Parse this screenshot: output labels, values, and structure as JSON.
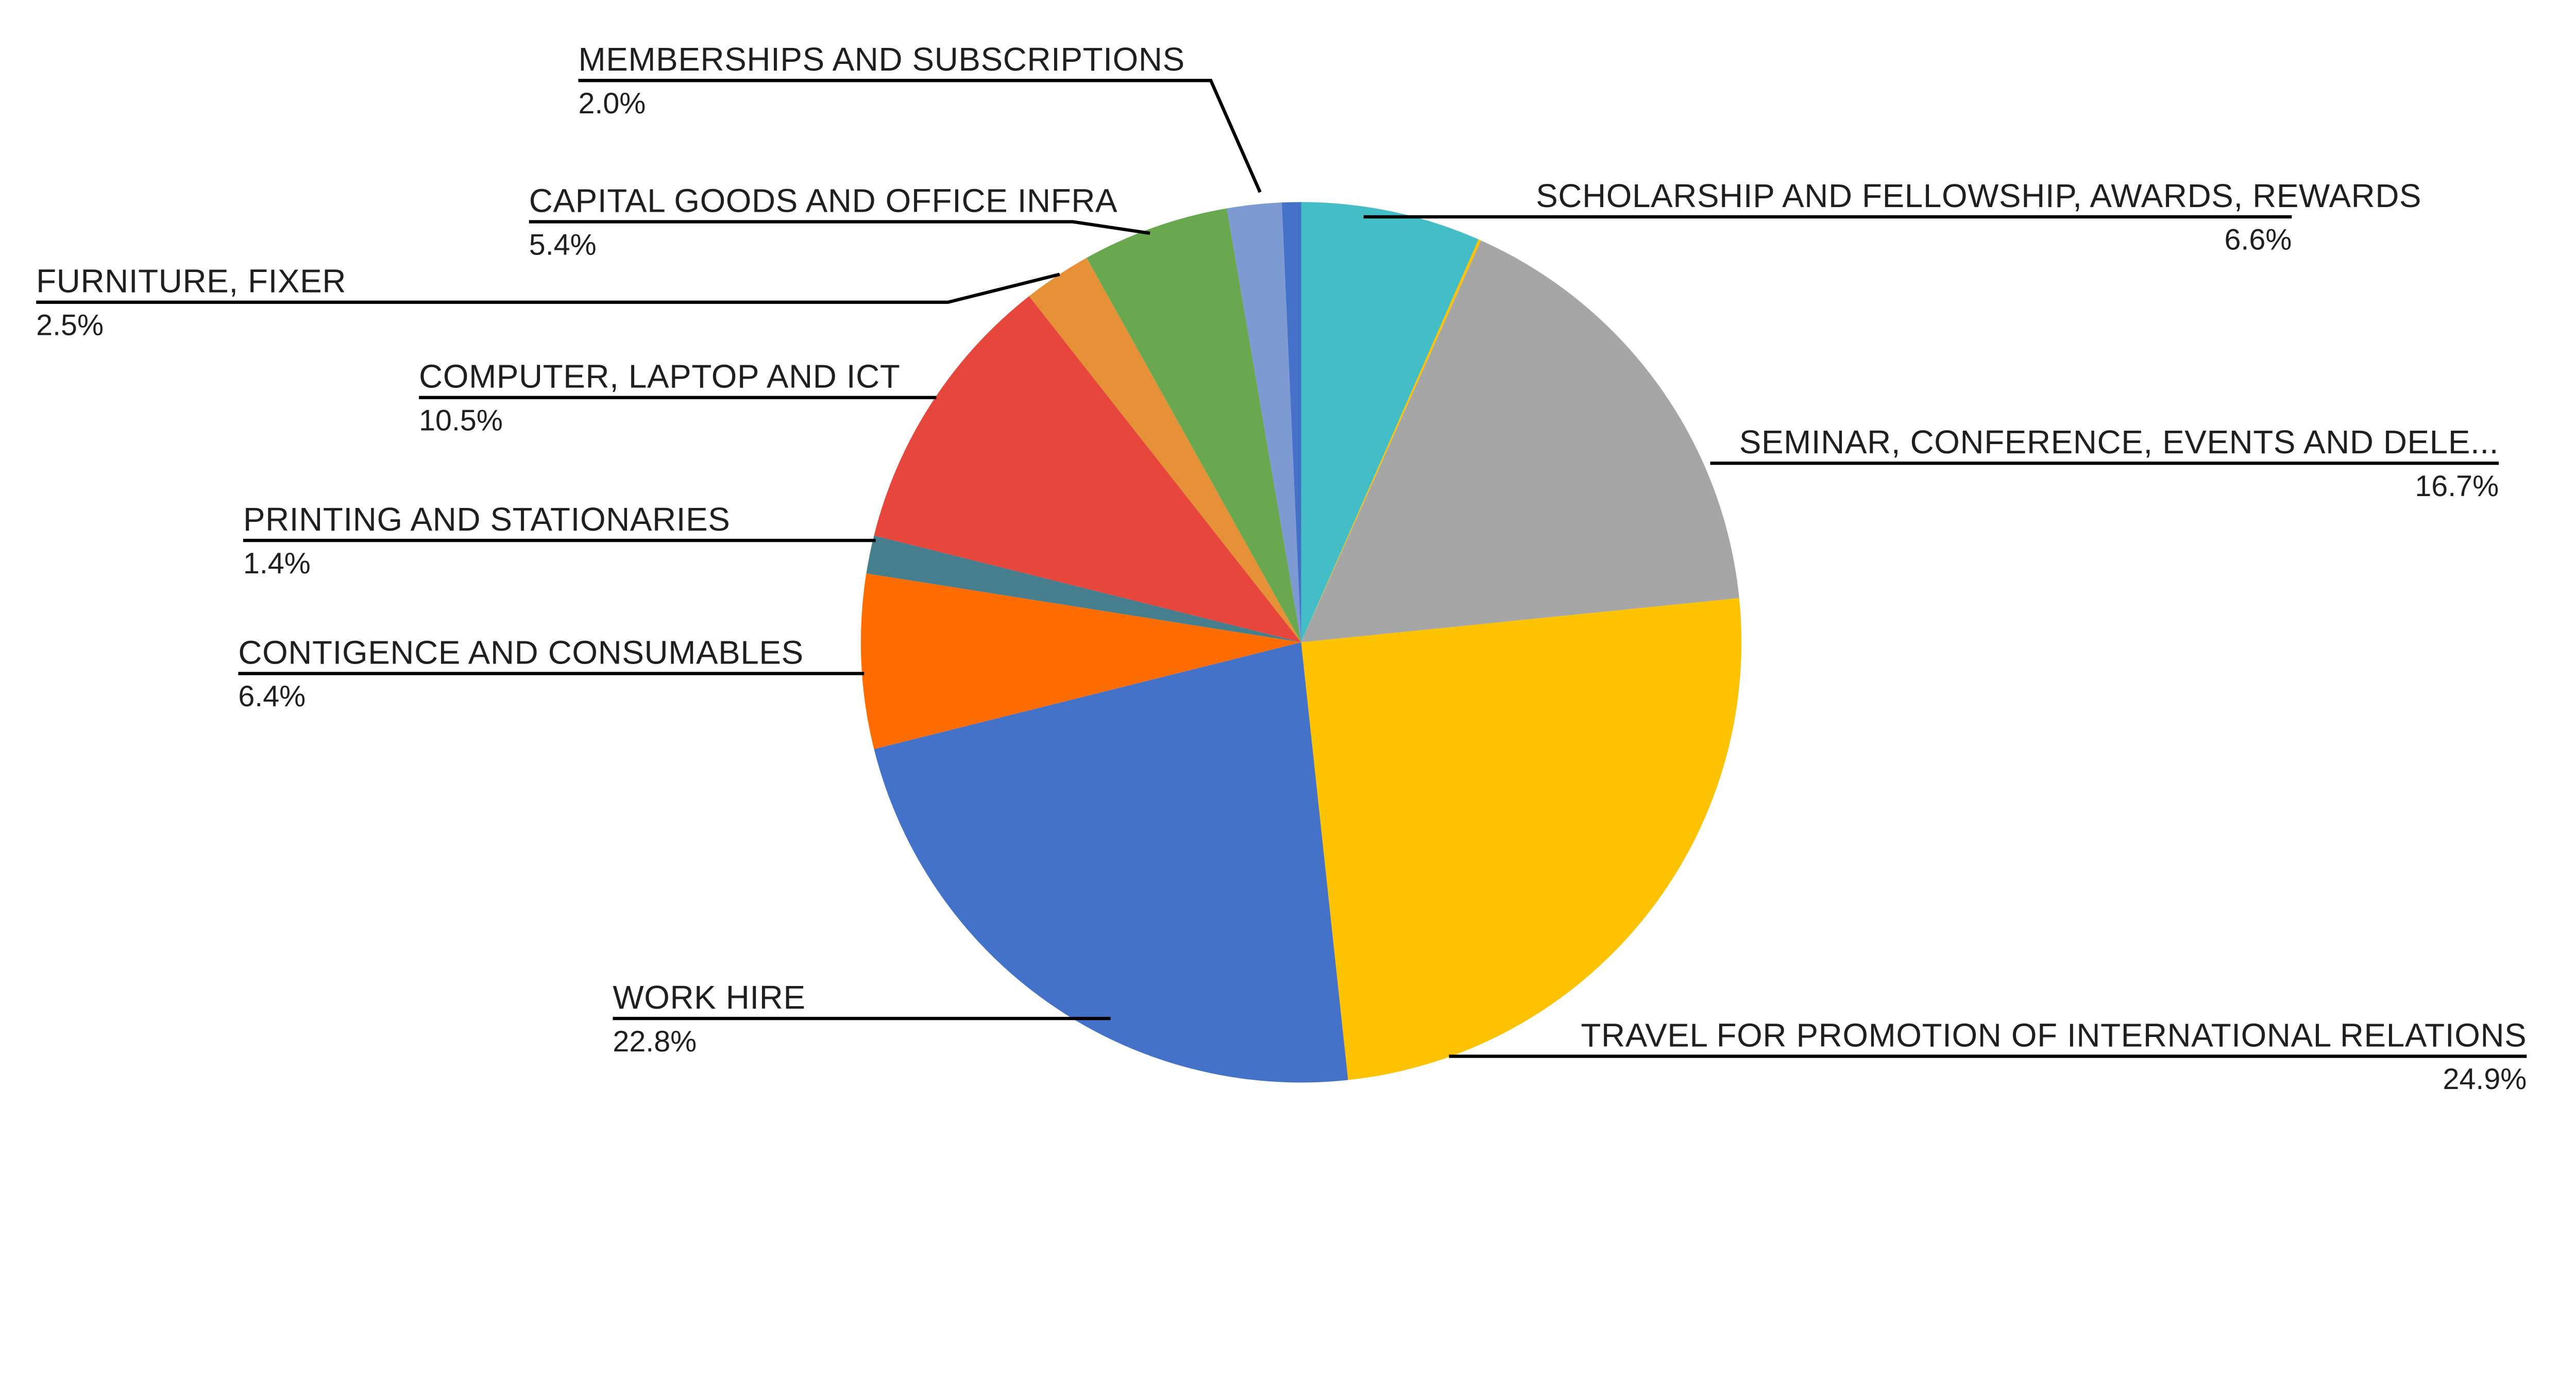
{
  "chart_data": {
    "type": "pie",
    "title": "",
    "direction": "clockwise",
    "start_angle_deg": 0,
    "background": "#FFFFFF",
    "text_color": "#1F1F1F",
    "leader_line_color": "#000000",
    "legend_position": "none",
    "slices": [
      {
        "label": "SCHOLARSHIP AND FELLOWSHIP, AWARDS, REWARDS",
        "pct_label": "6.6%",
        "value": 6.6,
        "color": "#43BEC6",
        "labeled": true
      },
      {
        "label": "",
        "pct_label": "",
        "value": 0.1,
        "color": "#FDC300",
        "labeled": false
      },
      {
        "label": "SEMINAR, CONFERENCE, EVENTS AND DELE...",
        "pct_label": "16.7%",
        "value": 16.7,
        "color": "#A6A6A6",
        "labeled": true
      },
      {
        "label": "TRAVEL FOR PROMOTION OF INTERNATIONAL RELATIONS",
        "pct_label": "24.9%",
        "value": 24.9,
        "color": "#FDC300",
        "labeled": true
      },
      {
        "label": "WORK HIRE",
        "pct_label": "22.8%",
        "value": 22.8,
        "color": "#4472C8",
        "labeled": true
      },
      {
        "label": "CONTIGENCE AND CONSUMABLES",
        "pct_label": "6.4%",
        "value": 6.4,
        "color": "#FF6D01",
        "labeled": true
      },
      {
        "label": "PRINTING AND STATIONARIES",
        "pct_label": "1.4%",
        "value": 1.4,
        "color": "#467E8E",
        "labeled": true
      },
      {
        "label": "COMPUTER, LAPTOP AND ICT",
        "pct_label": "10.5%",
        "value": 10.5,
        "color": "#E6463C",
        "labeled": true
      },
      {
        "label": "FURNITURE, FIXER",
        "pct_label": "2.5%",
        "value": 2.5,
        "color": "#E69138",
        "labeled": true
      },
      {
        "label": "CAPITAL GOODS AND OFFICE INFRA",
        "pct_label": "5.4%",
        "value": 5.4,
        "color": "#6AA84F",
        "labeled": true
      },
      {
        "label": "MEMBERSHIPS AND SUBSCRIPTIONS",
        "pct_label": "2.0%",
        "value": 2.0,
        "color": "#7E9AD3",
        "labeled": true
      },
      {
        "label": "",
        "pct_label": "",
        "value": 0.7,
        "color": "#4472C8",
        "labeled": false
      }
    ]
  }
}
